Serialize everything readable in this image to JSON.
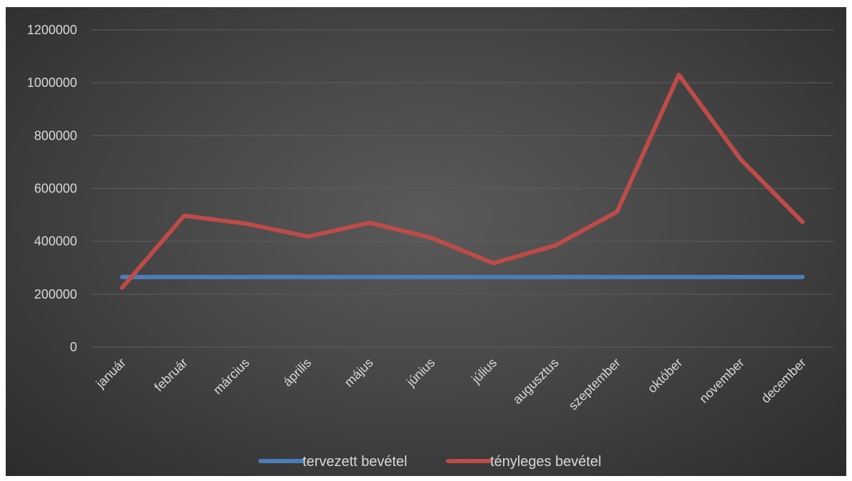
{
  "chart_data": {
    "type": "line",
    "categories": [
      "január",
      "február",
      "március",
      "április",
      "május",
      "június",
      "július",
      "augusztus",
      "szeptember",
      "október",
      "november",
      "december"
    ],
    "series": [
      {
        "name": "tervezett bevétel",
        "color": "#4a7ebb",
        "values": [
          265000,
          265000,
          265000,
          265000,
          265000,
          265000,
          265000,
          265000,
          265000,
          265000,
          265000,
          265000
        ]
      },
      {
        "name": "tényleges bevétel",
        "color": "#be4b48",
        "values": [
          225000,
          497000,
          467000,
          418000,
          470000,
          413000,
          317000,
          384000,
          512000,
          1030000,
          710000,
          473000
        ]
      }
    ],
    "y_ticks": [
      "0",
      "200000",
      "400000",
      "600000",
      "800000",
      "1000000",
      "1200000"
    ],
    "ylim": [
      0,
      1200000
    ],
    "grid": true,
    "legend": "bottom",
    "colors": {
      "background": "#404040",
      "grid": "#5e5e5e",
      "text": "#d9d9d9"
    }
  }
}
